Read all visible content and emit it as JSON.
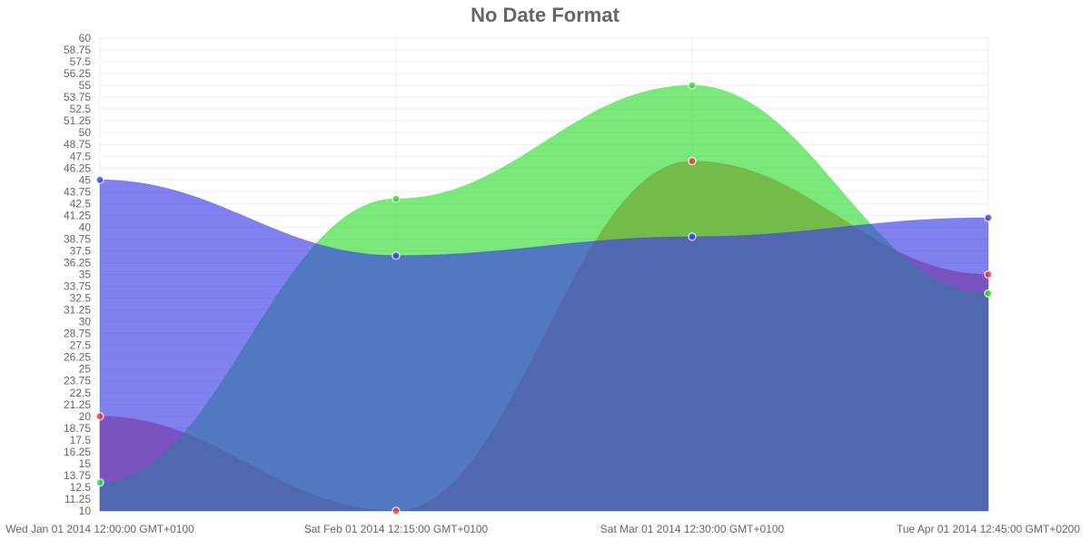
{
  "chart_data": {
    "type": "area",
    "title": "No Date Format",
    "x_labels": [
      "Wed Jan 01 2014 12:00:00 GMT+0100",
      "Sat Feb 01 2014 12:15:00 GMT+0100",
      "Sat Mar 01 2014 12:30:00 GMT+0100",
      "Tue Apr 01 2014 12:45:00 GMT+0200"
    ],
    "ylim": [
      10,
      60
    ],
    "y_ticks": [
      "10",
      "11.25",
      "12.5",
      "13.75",
      "15",
      "16.25",
      "17.5",
      "18.75",
      "20",
      "21.25",
      "22.5",
      "23.75",
      "25",
      "26.25",
      "27.5",
      "28.75",
      "30",
      "31.25",
      "32.5",
      "33.75",
      "35",
      "36.25",
      "37.5",
      "38.75",
      "40",
      "41.25",
      "42.5",
      "43.75",
      "45",
      "46.25",
      "47.5",
      "48.75",
      "50",
      "51.25",
      "52.5",
      "53.75",
      "55",
      "56.25",
      "57.5",
      "58.75",
      "60"
    ],
    "grid": true,
    "series": [
      {
        "values": [
          20,
          10,
          47,
          35
        ],
        "color": "#e53935"
      },
      {
        "values": [
          13,
          43,
          55,
          33
        ],
        "color": "#32dc32"
      },
      {
        "values": [
          45,
          37,
          39,
          41
        ],
        "color": "#3c3ce6"
      }
    ]
  }
}
